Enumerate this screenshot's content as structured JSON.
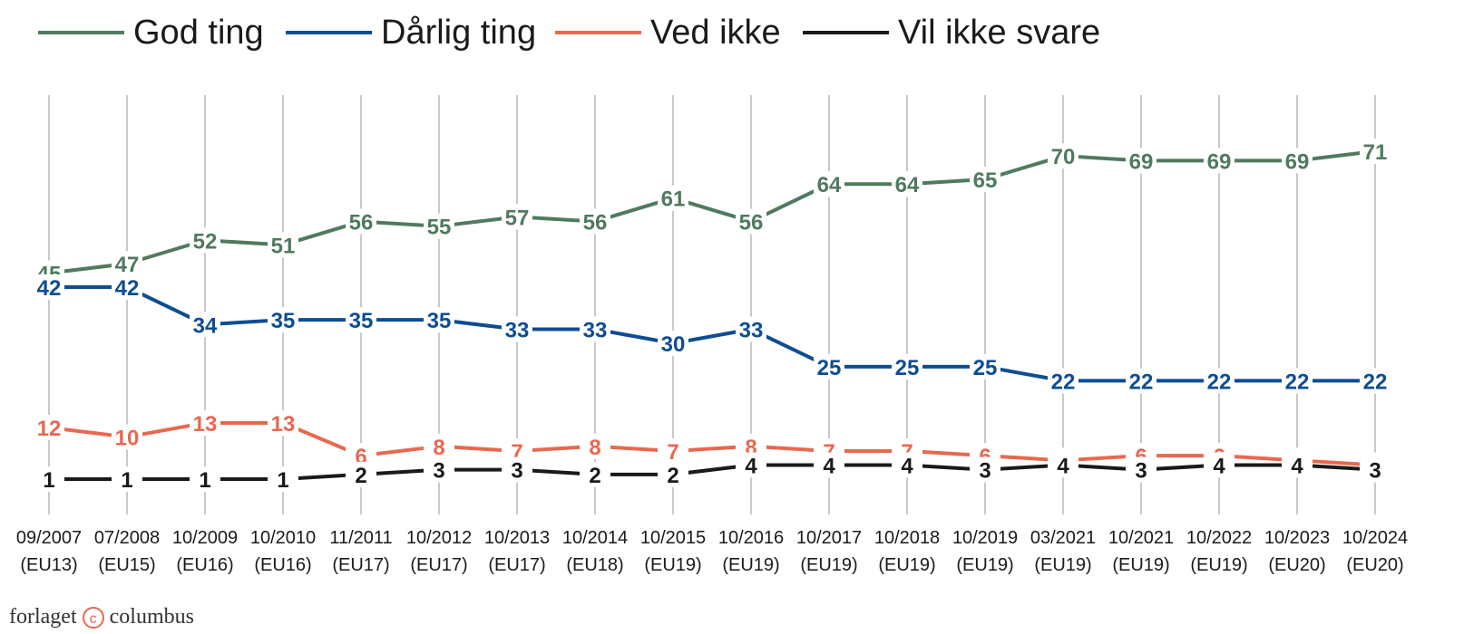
{
  "publisher": {
    "left": "forlaget",
    "right": "columbus"
  },
  "chart_data": {
    "type": "line",
    "categories": [
      [
        "09/2007",
        "(EU13)"
      ],
      [
        "07/2008",
        "(EU15)"
      ],
      [
        "10/2009",
        "(EU16)"
      ],
      [
        "10/2010",
        "(EU16)"
      ],
      [
        "11/2011",
        "(EU17)"
      ],
      [
        "10/2012",
        "(EU17)"
      ],
      [
        "10/2013",
        "(EU17)"
      ],
      [
        "10/2014",
        "(EU18)"
      ],
      [
        "10/2015",
        "(EU19)"
      ],
      [
        "10/2016",
        "(EU19)"
      ],
      [
        "10/2017",
        "(EU19)"
      ],
      [
        "10/2018",
        "(EU19)"
      ],
      [
        "10/2019",
        "(EU19)"
      ],
      [
        "03/2021",
        "(EU19)"
      ],
      [
        "10/2021",
        "(EU19)"
      ],
      [
        "10/2022",
        "(EU19)"
      ],
      [
        "10/2023",
        "(EU20)"
      ],
      [
        "10/2024",
        "(EU20)"
      ]
    ],
    "series": [
      {
        "name": "God ting",
        "color": "#4f7a5e",
        "values": [
          45,
          47,
          52,
          51,
          56,
          55,
          57,
          56,
          61,
          56,
          64,
          64,
          65,
          70,
          69,
          69,
          69,
          71
        ]
      },
      {
        "name": "Dårlig ting",
        "color": "#0d4d92",
        "values": [
          42,
          42,
          34,
          35,
          35,
          35,
          33,
          33,
          30,
          33,
          25,
          25,
          25,
          22,
          22,
          22,
          22,
          22
        ]
      },
      {
        "name": "Ved ikke",
        "color": "#e8684f",
        "values": [
          12,
          10,
          13,
          13,
          6,
          8,
          7,
          8,
          7,
          8,
          7,
          7,
          6,
          5,
          6,
          6,
          5,
          4
        ]
      },
      {
        "name": "Vil ikke svare",
        "color": "#1a1a1a",
        "values": [
          1,
          1,
          1,
          1,
          2,
          3,
          3,
          2,
          2,
          4,
          4,
          4,
          3,
          4,
          3,
          4,
          4,
          3
        ]
      }
    ],
    "grid": "vertical",
    "legend": "top"
  }
}
